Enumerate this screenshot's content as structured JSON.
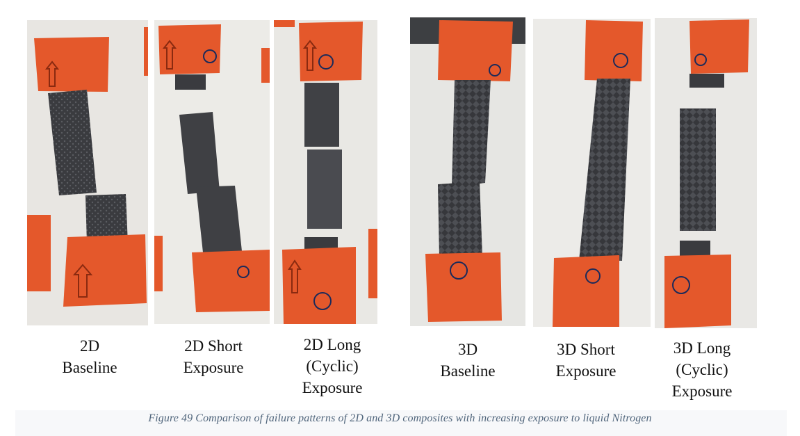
{
  "panels": [
    {
      "label_lines": [
        "2D",
        "Baseline"
      ]
    },
    {
      "label_lines": [
        "2D Short",
        "Exposure"
      ]
    },
    {
      "label_lines": [
        "2D Long",
        "(Cyclic)",
        "Exposure"
      ]
    },
    {
      "label_lines": [
        "3D",
        "Baseline"
      ]
    },
    {
      "label_lines": [
        "3D Short",
        "Exposure"
      ]
    },
    {
      "label_lines": [
        "3D Long",
        "(Cyclic)",
        "Exposure"
      ]
    }
  ],
  "caption": "Figure 49 Comparison of failure patterns of 2D and 3D composites with increasing exposure to liquid Nitrogen",
  "colors": {
    "tab": "#e4582b",
    "tab_dark": "#c9441c",
    "composite": "#3a3b3f",
    "composite_light": "#55575c",
    "background": "#e7e5e0"
  }
}
